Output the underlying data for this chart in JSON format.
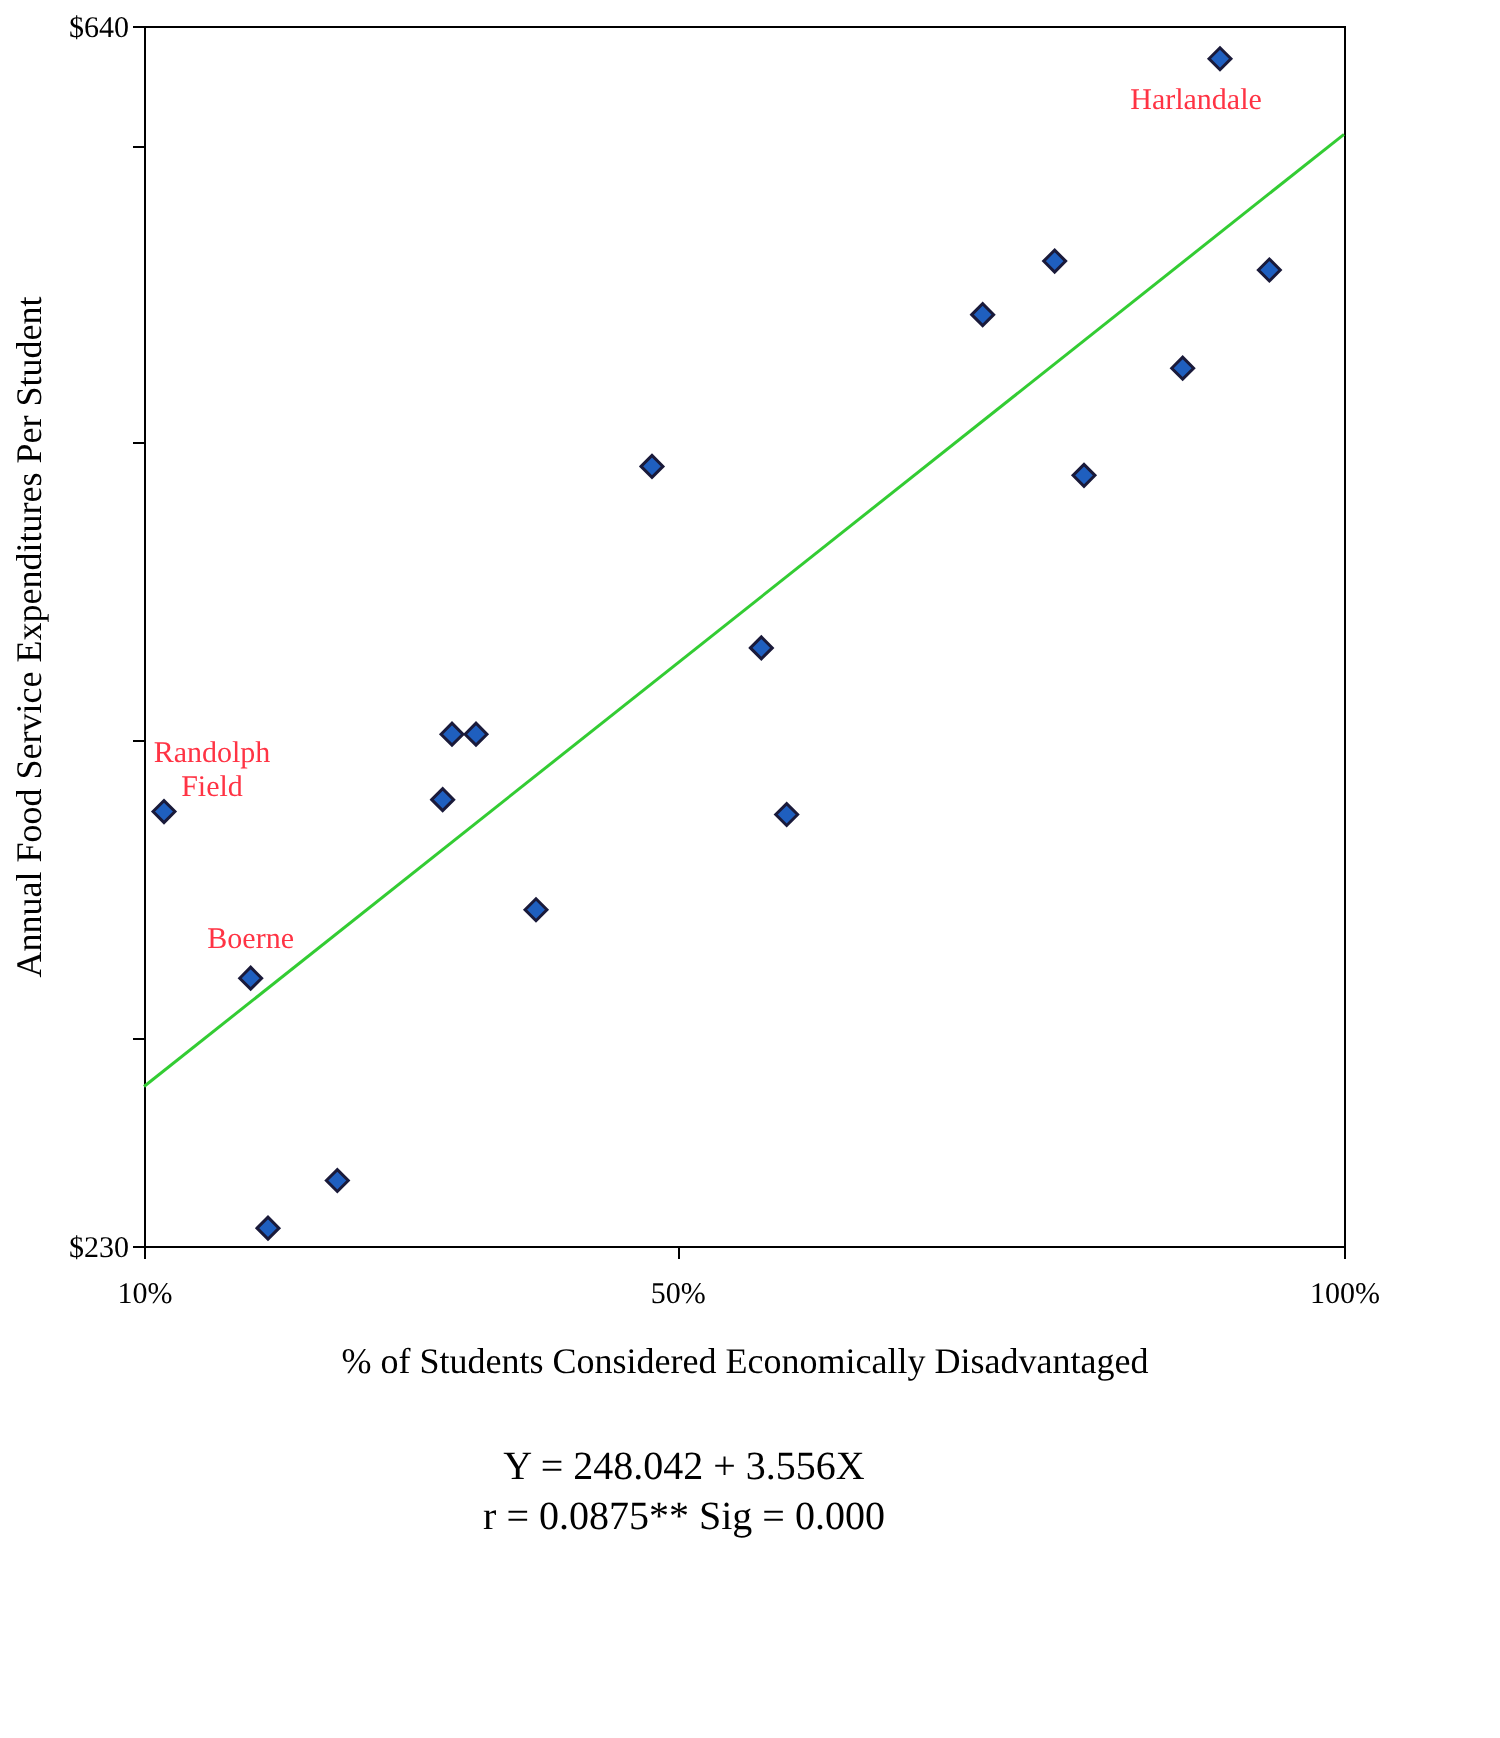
{
  "chart_data": {
    "type": "scatter",
    "xlabel": "% of Students Considered Economically Disadvantaged",
    "ylabel": "Annual Food Service Expenditures Per Student",
    "xlim": [
      10,
      100
    ],
    "ylim": [
      230,
      640
    ],
    "xticks": [
      {
        "value": 10,
        "label": "10%"
      },
      {
        "value": 50,
        "label": "50%"
      },
      {
        "value": 100,
        "label": "100%"
      }
    ],
    "yticks": [
      {
        "value": 230,
        "label": "$230"
      },
      {
        "value": 300,
        "label": null
      },
      {
        "value": 400,
        "label": null
      },
      {
        "value": 500,
        "label": null
      },
      {
        "value": 600,
        "label": null
      },
      {
        "value": 640,
        "label": "$640"
      }
    ],
    "grid": false,
    "series": [
      {
        "marker": "diamond",
        "color": "#1f5fbf",
        "x": [
          11.5,
          18.0,
          19.3,
          24.5,
          32.4,
          33.1,
          34.9,
          39.4,
          48.1,
          56.3,
          58.2,
          72.9,
          78.3,
          80.5,
          87.9,
          90.7,
          94.4
        ],
        "values": [
          376,
          320,
          236,
          252,
          380,
          402,
          402,
          343,
          492,
          431,
          375,
          543,
          561,
          489,
          525,
          629,
          558
        ]
      },
      {
        "type": "line",
        "color": "#33cc33",
        "x": [
          10,
          100
        ],
        "values": [
          283.6,
          603.6
        ]
      }
    ],
    "annotations": [
      {
        "text": "Harlandale",
        "x": 90.7,
        "y": 629
      },
      {
        "text": "Randolph\nField",
        "x": 11.5,
        "y": 376
      },
      {
        "text": "Boerne",
        "x": 18.0,
        "y": 320
      },
      "Y = 248.042 + 3.556X",
      "r = 0.0875** Sig = 0.000"
    ]
  }
}
